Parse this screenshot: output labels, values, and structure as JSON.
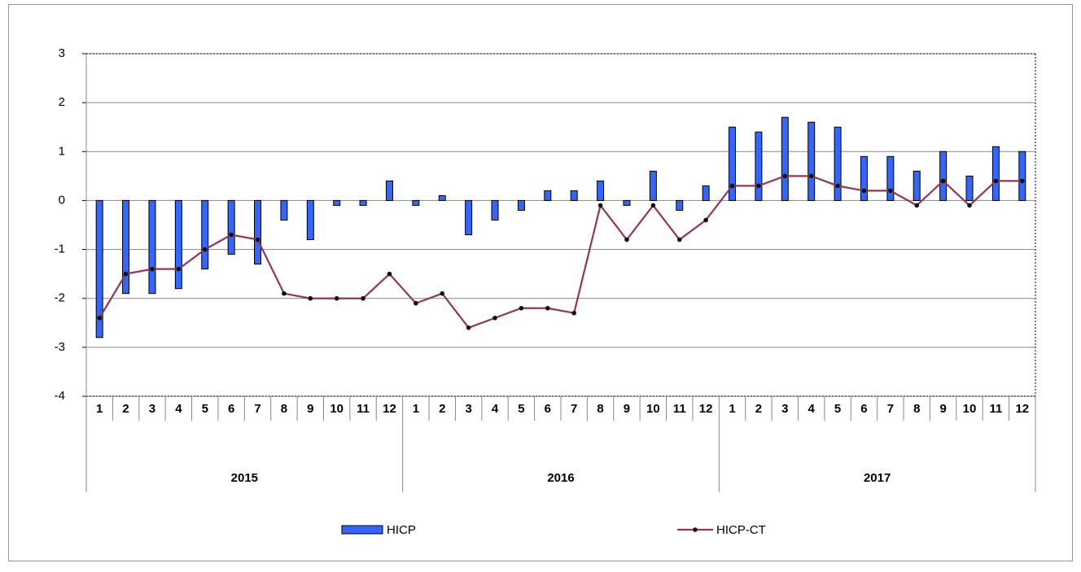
{
  "chart_data": {
    "type": "combo",
    "categories": [
      "1",
      "2",
      "3",
      "4",
      "5",
      "6",
      "7",
      "8",
      "9",
      "10",
      "11",
      "12",
      "1",
      "2",
      "3",
      "4",
      "5",
      "6",
      "7",
      "8",
      "9",
      "10",
      "11",
      "12",
      "1",
      "2",
      "3",
      "4",
      "5",
      "6",
      "7",
      "8",
      "9",
      "10",
      "11",
      "12"
    ],
    "category_groups": [
      "2015",
      "2016",
      "2017"
    ],
    "series": [
      {
        "name": "HICP",
        "type": "bar",
        "color": "#3366ff",
        "values": [
          -2.8,
          -1.9,
          -1.9,
          -1.8,
          -1.4,
          -1.1,
          -1.3,
          -0.4,
          -0.8,
          -0.1,
          -0.1,
          0.4,
          -0.1,
          0.1,
          -0.7,
          -0.4,
          -0.2,
          0.2,
          0.2,
          0.4,
          -0.1,
          0.6,
          -0.2,
          0.3,
          1.5,
          1.4,
          1.7,
          1.6,
          1.5,
          0.9,
          0.9,
          0.6,
          1.0,
          0.5,
          1.1,
          1.0
        ]
      },
      {
        "name": "HICP-CT",
        "type": "line",
        "color": "#953553",
        "values": [
          -2.4,
          -1.5,
          -1.4,
          -1.4,
          -1.0,
          -0.7,
          -0.8,
          -1.9,
          -2.0,
          -2.0,
          -2.0,
          -1.5,
          -2.1,
          -1.9,
          -2.6,
          -2.4,
          -2.2,
          -2.2,
          -2.3,
          -0.1,
          -0.8,
          -0.1,
          -0.8,
          -0.4,
          0.3,
          0.3,
          0.5,
          0.5,
          0.3,
          0.2,
          0.2,
          -0.1,
          0.4,
          -0.1,
          0.4,
          0.4
        ]
      }
    ],
    "ylim": [
      -4,
      3
    ],
    "yticks": [
      -4,
      -3,
      -2,
      -1,
      0,
      1,
      2,
      3
    ],
    "grid": true,
    "legend": "bottom"
  }
}
